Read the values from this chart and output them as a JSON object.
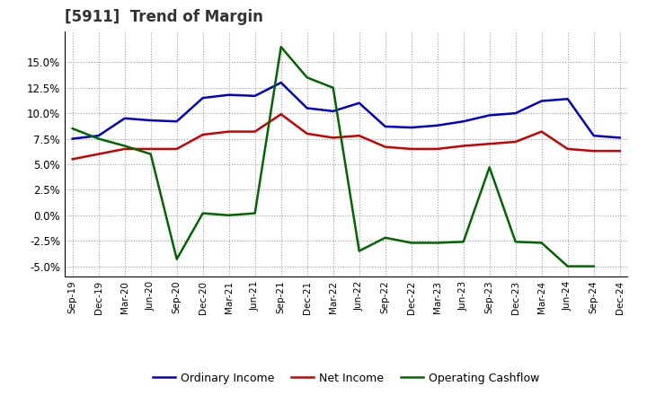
{
  "title": "[5911]  Trend of Margin",
  "x_labels": [
    "Sep-19",
    "Dec-19",
    "Mar-20",
    "Jun-20",
    "Sep-20",
    "Dec-20",
    "Mar-21",
    "Jun-21",
    "Sep-21",
    "Dec-21",
    "Mar-22",
    "Jun-22",
    "Sep-22",
    "Dec-22",
    "Mar-23",
    "Jun-23",
    "Sep-23",
    "Dec-23",
    "Mar-24",
    "Jun-24",
    "Sep-24",
    "Dec-24"
  ],
  "ordinary_income": [
    7.5,
    7.8,
    9.5,
    9.3,
    9.2,
    11.5,
    11.8,
    11.7,
    13.0,
    10.5,
    10.2,
    11.0,
    8.7,
    8.6,
    8.8,
    9.2,
    9.8,
    10.0,
    11.2,
    11.4,
    7.8,
    7.6
  ],
  "net_income": [
    5.5,
    6.0,
    6.5,
    6.5,
    6.5,
    7.9,
    8.2,
    8.2,
    9.9,
    8.0,
    7.6,
    7.8,
    6.7,
    6.5,
    6.5,
    6.8,
    7.0,
    7.2,
    8.2,
    6.5,
    6.3,
    6.3
  ],
  "operating_cashflow": [
    8.5,
    7.5,
    6.8,
    6.0,
    -4.3,
    0.2,
    0.0,
    0.2,
    16.5,
    13.5,
    12.5,
    -3.5,
    -2.2,
    -2.7,
    -2.7,
    -2.6,
    4.7,
    -2.6,
    -2.7,
    -5.0,
    -5.0,
    null
  ],
  "ylim": [
    -6.0,
    18.0
  ],
  "yticks": [
    -5.0,
    -2.5,
    0.0,
    2.5,
    5.0,
    7.5,
    10.0,
    12.5,
    15.0
  ],
  "colors": {
    "ordinary_income": "#0000cc",
    "net_income": "#cc0000",
    "operating_cashflow": "#006600"
  },
  "background_color": "#ffffff",
  "grid_color": "#999999",
  "title_color": "#333333",
  "title_fontsize": 12
}
